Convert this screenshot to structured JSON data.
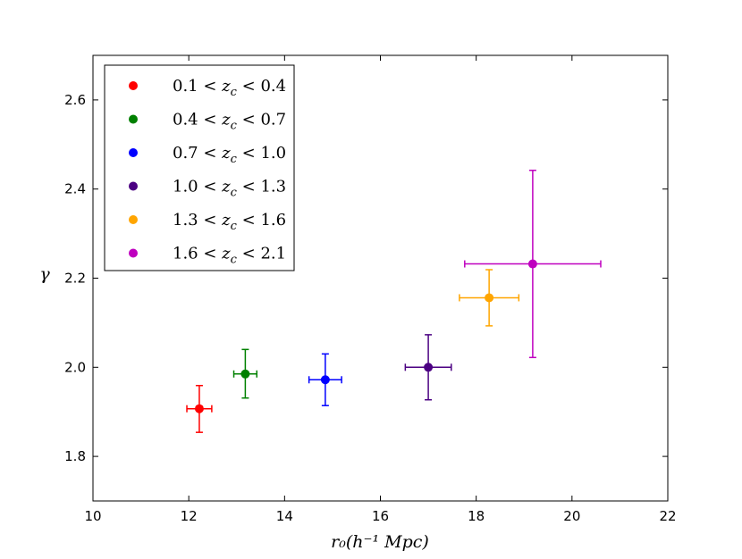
{
  "chart_data": {
    "type": "scatter",
    "title": "",
    "xlabel": "r₀(h⁻¹ Mpc)",
    "ylabel": "γ",
    "xlim": [
      10,
      22
    ],
    "ylim": [
      1.7,
      2.7
    ],
    "xticks": [
      10,
      12,
      14,
      16,
      18,
      20,
      22
    ],
    "yticks": [
      1.8,
      2.0,
      2.2,
      2.4,
      2.6
    ],
    "ytick_labels": [
      "1.8",
      "2.0",
      "2.2",
      "2.4",
      "2.6"
    ],
    "grid": false,
    "legend_position": "top-left",
    "series": [
      {
        "name": "0.1 < z_c < 0.4",
        "label_lo": "0.1",
        "label_hi": "0.4",
        "color": "#ff0000",
        "x": 12.22,
        "y": 1.907,
        "xerr": 0.26,
        "yerr_low": 0.053,
        "yerr_high": 0.052
      },
      {
        "name": "0.4 < z_c < 0.7",
        "label_lo": "0.4",
        "label_hi": "0.7",
        "color": "#008000",
        "x": 13.18,
        "y": 1.985,
        "xerr": 0.24,
        "yerr_low": 0.054,
        "yerr_high": 0.055
      },
      {
        "name": "0.7 < z_c < 1.0",
        "label_lo": "0.7",
        "label_hi": "1.0",
        "color": "#0000ff",
        "x": 14.85,
        "y": 1.972,
        "xerr": 0.34,
        "yerr_low": 0.058,
        "yerr_high": 0.058
      },
      {
        "name": "1.0 < z_c < 1.3",
        "label_lo": "1.0",
        "label_hi": "1.3",
        "color": "#4b0082",
        "x": 17.0,
        "y": 2.0,
        "xerr": 0.48,
        "yerr_low": 0.073,
        "yerr_high": 0.073
      },
      {
        "name": "1.3 < z_c < 1.6",
        "label_lo": "1.3",
        "label_hi": "1.6",
        "color": "#ffa500",
        "x": 18.27,
        "y": 2.156,
        "xerr": 0.62,
        "yerr_low": 0.063,
        "yerr_high": 0.063
      },
      {
        "name": "1.6 < z_c < 2.1",
        "label_lo": "1.6",
        "label_hi": "2.1",
        "color": "#bf00bf",
        "x": 19.18,
        "y": 2.232,
        "xerr": 1.42,
        "yerr_low": 0.21,
        "yerr_high": 0.21
      }
    ]
  }
}
